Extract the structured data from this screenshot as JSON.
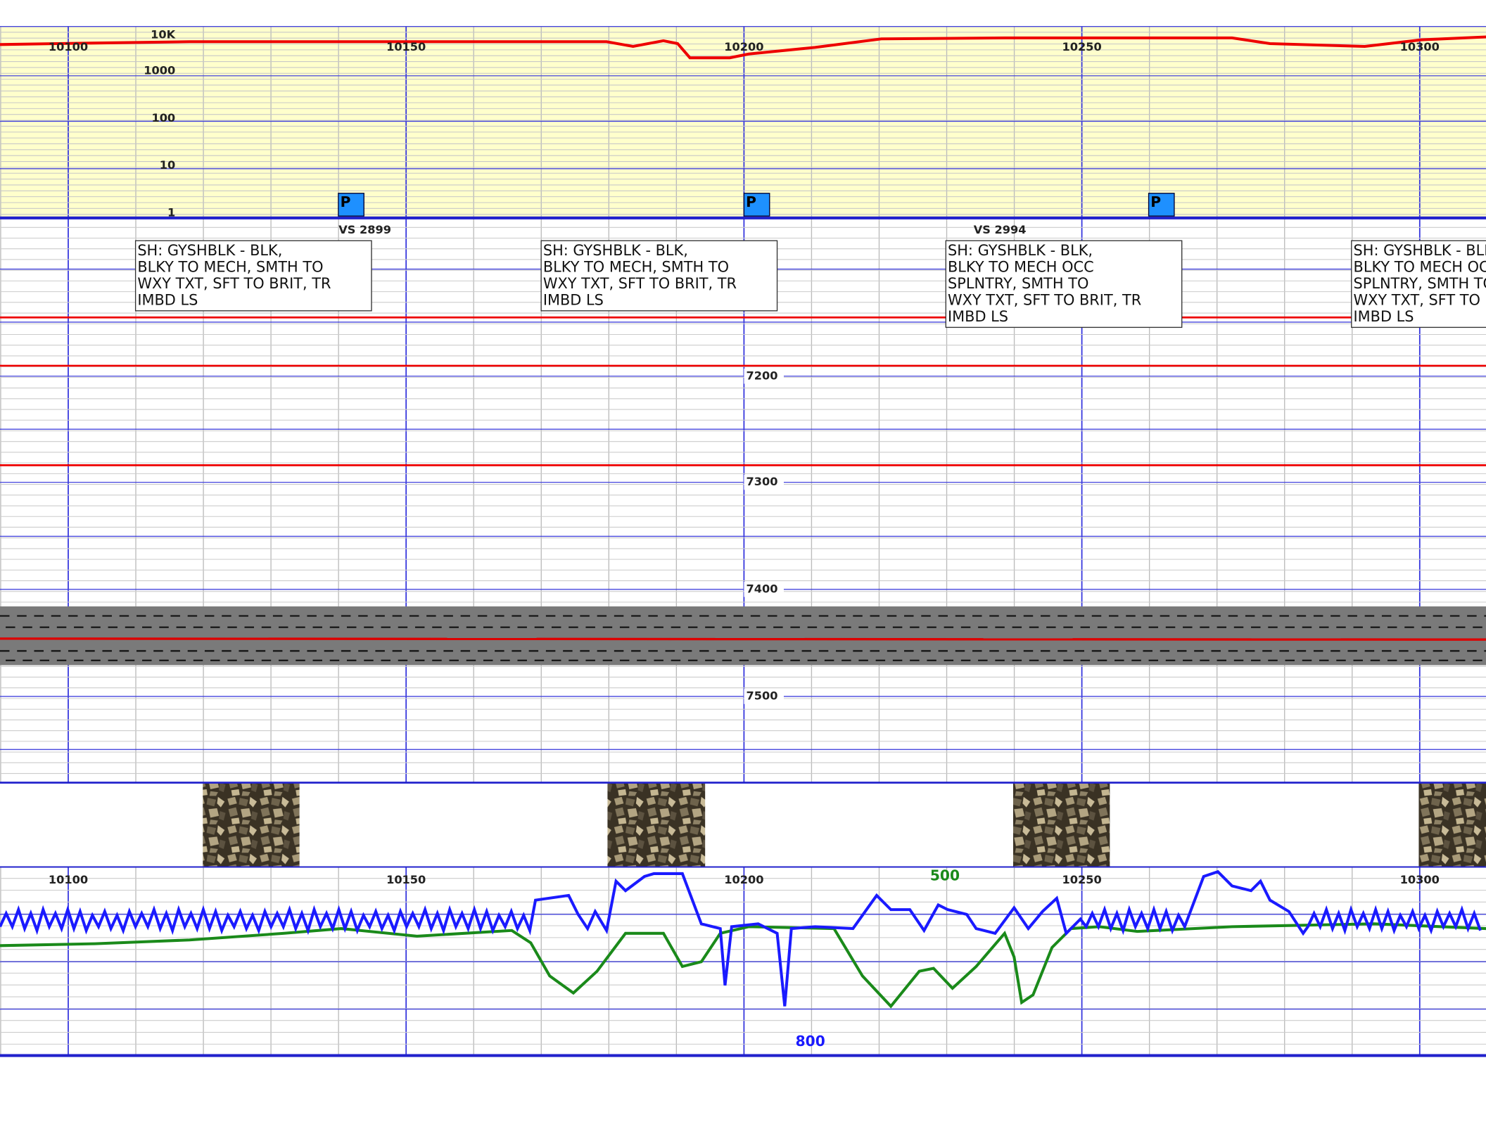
{
  "top_track": {
    "depth_labels": [
      "10100",
      "10150",
      "10200",
      "10250",
      "10300"
    ],
    "scale_labels": [
      "10K",
      "1000",
      "100",
      "10",
      "1"
    ],
    "markers": [
      "P",
      "P",
      "P"
    ]
  },
  "lithology_track": {
    "vs_labels": [
      "VS 2899",
      "VS 2994"
    ],
    "descriptions": [
      [
        "SH: GYSHBLK - BLK,",
        "BLKY TO MECH, SMTH TO",
        "WXY TXT, SFT TO BRIT, TR",
        "IMBD LS"
      ],
      [
        "SH: GYSHBLK - BLK,",
        "BLKY TO MECH, SMTH TO",
        "WXY TXT, SFT TO BRIT, TR",
        "IMBD LS"
      ],
      [
        "SH: GYSHBLK - BLK,",
        "BLKY TO MECH OCC",
        "SPLNTRY, SMTH TO",
        "WXY TXT, SFT TO BRIT, TR",
        "IMBD LS"
      ],
      [
        "SH: GYSHBLK - BLK,",
        "BLKY TO MECH OCC",
        "SPLNTRY, SMTH TO",
        "WXY TXT, SFT TO BRIT, TR",
        "IMBD LS"
      ]
    ],
    "depth_labels": [
      "7200",
      "7300",
      "7400",
      "7500"
    ]
  },
  "curve_track": {
    "depth_labels": [
      "10100",
      "10150",
      "10200",
      "10250",
      "10300"
    ],
    "green_scale": "500",
    "blue_scale": "800"
  }
}
